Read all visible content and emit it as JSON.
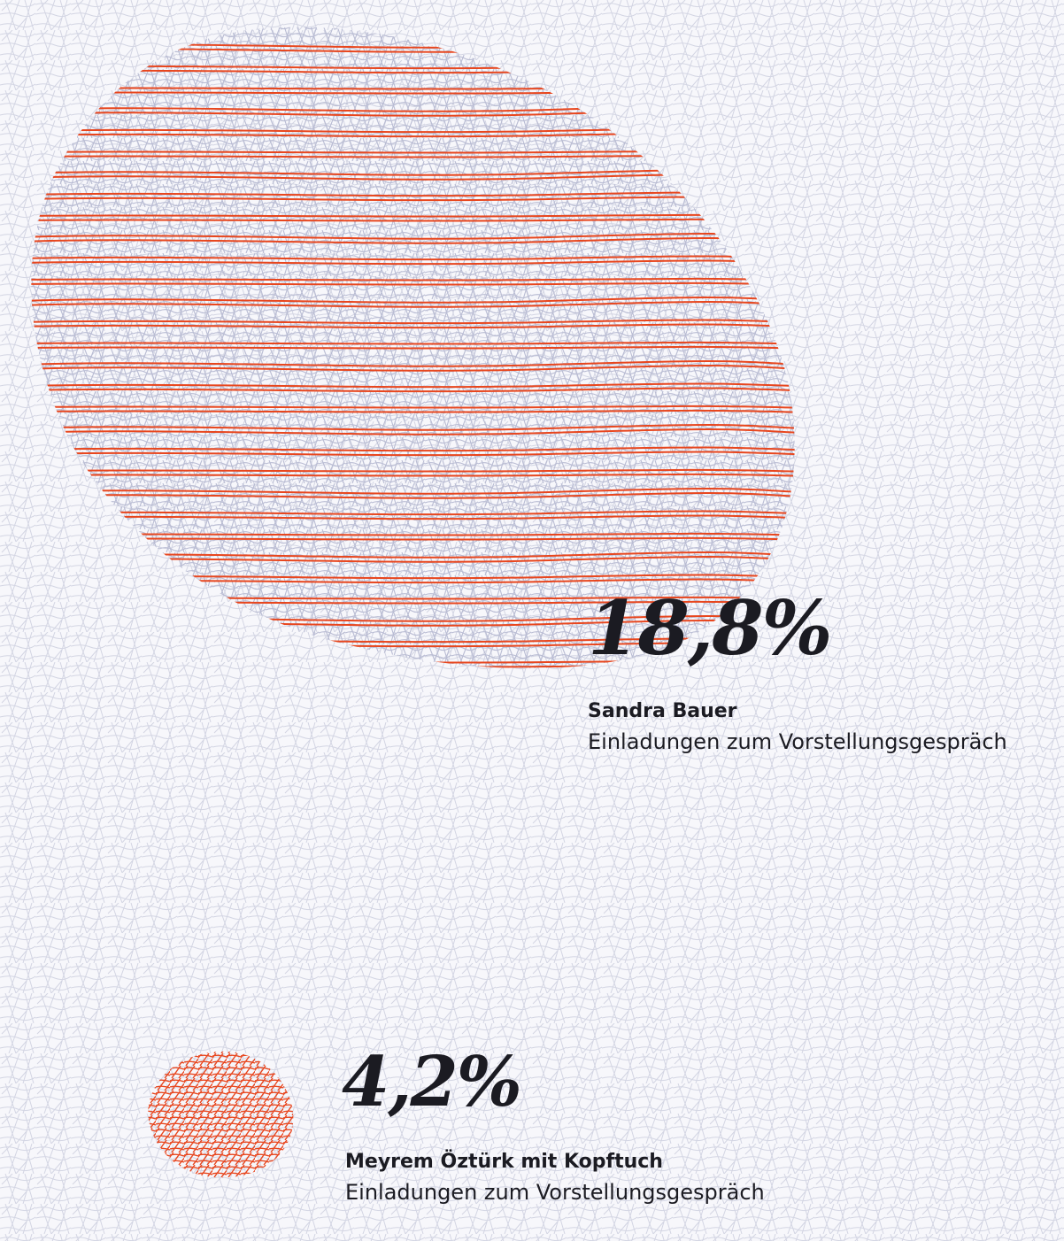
{
  "chart_data": {
    "type": "area",
    "title": "",
    "items": [
      {
        "value": 18.8,
        "value_label": "18,8%",
        "name": "Sandra Bauer",
        "metric": "Einladungen zum Vorstellungsgespräch"
      },
      {
        "value": 4.2,
        "value_label": "4,2%",
        "name": "Meyrem Öztürk mit Kopftuch",
        "metric": "Einladungen zum Vorstellungsgespräch"
      }
    ]
  },
  "colors": {
    "background": "#f7f7fb",
    "texture": "#c7c9dc",
    "accent": "#e8461e",
    "text": "#1b1b22"
  }
}
